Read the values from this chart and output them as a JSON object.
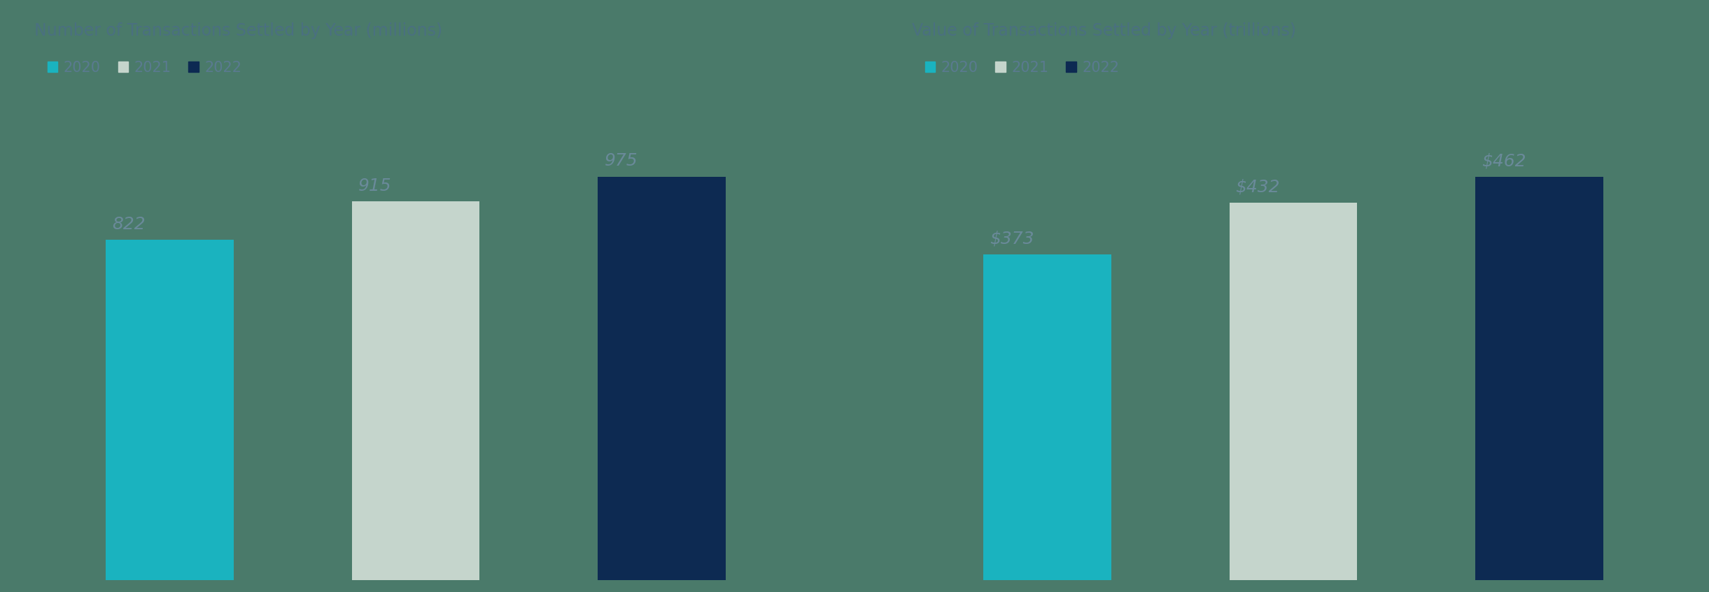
{
  "chart1": {
    "title": "Number of Transactions Settled by Year (millions)",
    "years": [
      "2020",
      "2021",
      "2022"
    ],
    "values": [
      822,
      915,
      975
    ],
    "labels": [
      "822",
      "915",
      "975"
    ],
    "colors": [
      "#1ab3bf",
      "#c5d5cc",
      "#0d2a52"
    ]
  },
  "chart2": {
    "title": "Value of Transactions Settled by Year (trillions)",
    "years": [
      "2020",
      "2021",
      "2022"
    ],
    "values": [
      373,
      432,
      462
    ],
    "labels": [
      "$373",
      "$432",
      "$462"
    ],
    "colors": [
      "#1ab3bf",
      "#c5d5cc",
      "#0d2a52"
    ]
  },
  "legend_labels": [
    "2020",
    "2021",
    "2022"
  ],
  "legend_colors": [
    "#1ab3bf",
    "#c5d5cc",
    "#0d2a52"
  ],
  "background_color": "#4a7a6a",
  "title_color": "#4a7080",
  "label_color": "#5a7a90",
  "bar_label_color": "#6a8a9a",
  "title_fontsize": 17,
  "label_fontsize": 18,
  "legend_fontsize": 15,
  "figsize": [
    24.42,
    8.47
  ],
  "dpi": 100
}
